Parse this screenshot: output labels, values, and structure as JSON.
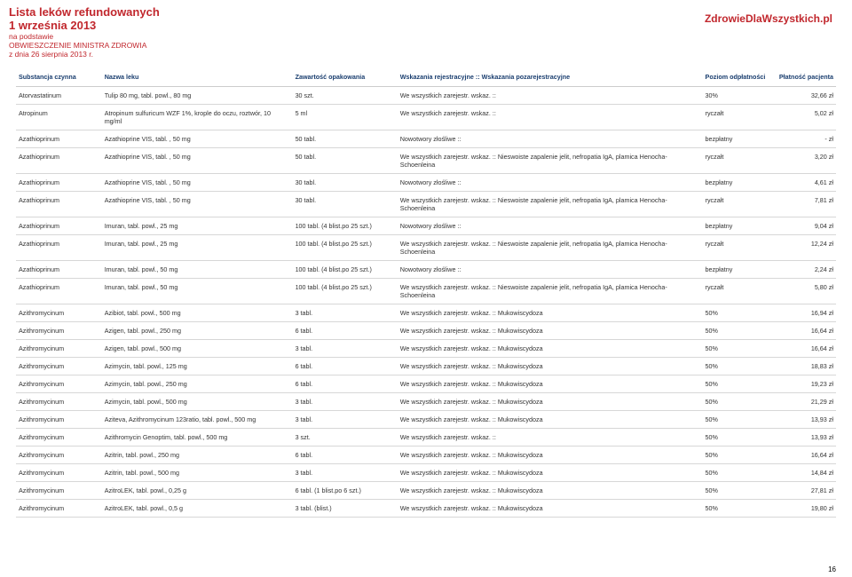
{
  "colors": {
    "accent": "#c1272d",
    "text": "#333333",
    "border": "#d7d7d7",
    "header_blue": "#1a3e6f"
  },
  "header": {
    "title_main": "Lista leków refundowanych",
    "title_date": "1 września 2013",
    "subtitle1": "na podstawie",
    "subtitle2": "OBWIESZCZENIE MINISTRA ZDROWIA",
    "subtitle3": "z dnia 26 sierpnia 2013 r.",
    "brand": "ZdrowieDlaWszystkich.pl"
  },
  "columns": [
    "Substancja czynna",
    "Nazwa leku",
    "Zawartość opakowania",
    "Wskazania rejestracyjne :: Wskazania pozarejestracyjne",
    "Poziom odpłatności",
    "Płatność pacjenta"
  ],
  "rows": [
    {
      "c0": "Atorvastatinum",
      "c1": "Tulip 80 mg, tabl. powl., 80 mg",
      "c2": "30 szt.",
      "c3": "We wszystkich zarejestr. wskaz. ::",
      "c4": "30%",
      "c5": "32,66 zł"
    },
    {
      "c0": "Atropinum",
      "c1": "Atropinum sulfuricum WZF 1%, krople do oczu, roztwór, 10 mg/ml",
      "c2": "5 ml",
      "c3": "We wszystkich zarejestr. wskaz. ::",
      "c4": "ryczałt",
      "c5": "5,02 zł"
    },
    {
      "c0": "Azathioprinum",
      "c1": "Azathioprine VIS, tabl. , 50 mg",
      "c2": "50 tabl.",
      "c3": "Nowotwory złośliwe ::",
      "c4": "bezpłatny",
      "c5": "-  zł"
    },
    {
      "c0": "Azathioprinum",
      "c1": "Azathioprine VIS, tabl. , 50 mg",
      "c2": "50 tabl.",
      "c3": "We wszystkich zarejestr. wskaz. :: Nieswoiste zapalenie jelit, nefropatia IgA, plamica Henocha-Schoenleina",
      "c4": "ryczałt",
      "c5": "3,20 zł"
    },
    {
      "c0": "Azathioprinum",
      "c1": "Azathioprine VIS, tabl. , 50 mg",
      "c2": "30 tabl.",
      "c3": "Nowotwory złośliwe ::",
      "c4": "bezpłatny",
      "c5": "4,61 zł"
    },
    {
      "c0": "Azathioprinum",
      "c1": "Azathioprine VIS, tabl. , 50 mg",
      "c2": "30 tabl.",
      "c3": "We wszystkich zarejestr. wskaz. :: Nieswoiste zapalenie jelit, nefropatia IgA, plamica Henocha-Schoenleina",
      "c4": "ryczałt",
      "c5": "7,81 zł"
    },
    {
      "c0": "Azathioprinum",
      "c1": "Imuran, tabl. powl., 25 mg",
      "c2": "100 tabl. (4 blist.po 25 szt.)",
      "c3": "Nowotwory złośliwe ::",
      "c4": "bezpłatny",
      "c5": "9,04 zł"
    },
    {
      "c0": "Azathioprinum",
      "c1": "Imuran, tabl. powl., 25 mg",
      "c2": "100 tabl. (4 blist.po 25 szt.)",
      "c3": "We wszystkich zarejestr. wskaz. :: Nieswoiste zapalenie jelit, nefropatia IgA, plamica Henocha-Schoenleina",
      "c4": "ryczałt",
      "c5": "12,24 zł"
    },
    {
      "c0": "Azathioprinum",
      "c1": "Imuran, tabl. powl., 50 mg",
      "c2": "100 tabl. (4 blist.po 25 szt.)",
      "c3": "Nowotwory złośliwe ::",
      "c4": "bezpłatny",
      "c5": "2,24 zł"
    },
    {
      "c0": "Azathioprinum",
      "c1": "Imuran, tabl. powl., 50 mg",
      "c2": "100 tabl. (4 blist.po 25 szt.)",
      "c3": "We wszystkich zarejestr. wskaz. :: Nieswoiste zapalenie jelit, nefropatia IgA, plamica Henocha-Schoenleina",
      "c4": "ryczałt",
      "c5": "5,80 zł"
    },
    {
      "c0": "Azithromycinum",
      "c1": "Azibiot, tabl. powl., 500 mg",
      "c2": "3 tabl.",
      "c3": "We wszystkich zarejestr. wskaz. :: Mukowiscydoza",
      "c4": "50%",
      "c5": "16,94 zł"
    },
    {
      "c0": "Azithromycinum",
      "c1": "Azigen, tabl. powl., 250 mg",
      "c2": "6 tabl.",
      "c3": "We wszystkich zarejestr. wskaz. :: Mukowiscydoza",
      "c4": "50%",
      "c5": "16,64 zł"
    },
    {
      "c0": "Azithromycinum",
      "c1": "Azigen, tabl. powl., 500 mg",
      "c2": "3 tabl.",
      "c3": "We wszystkich zarejestr. wskaz. :: Mukowiscydoza",
      "c4": "50%",
      "c5": "16,64 zł"
    },
    {
      "c0": "Azithromycinum",
      "c1": "Azimycin, tabl. powl., 125 mg",
      "c2": "6 tabl.",
      "c3": "We wszystkich zarejestr. wskaz. :: Mukowiscydoza",
      "c4": "50%",
      "c5": "18,83 zł"
    },
    {
      "c0": "Azithromycinum",
      "c1": "Azimycin, tabl. powl., 250 mg",
      "c2": "6 tabl.",
      "c3": "We wszystkich zarejestr. wskaz. :: Mukowiscydoza",
      "c4": "50%",
      "c5": "19,23 zł"
    },
    {
      "c0": "Azithromycinum",
      "c1": "Azimycin, tabl. powl., 500 mg",
      "c2": "3 tabl.",
      "c3": "We wszystkich zarejestr. wskaz. :: Mukowiscydoza",
      "c4": "50%",
      "c5": "21,29 zł"
    },
    {
      "c0": "Azithromycinum",
      "c1": "Aziteva, Azithromycinum 123ratio, tabl. powl., 500 mg",
      "c2": "3 tabl.",
      "c3": "We wszystkich zarejestr. wskaz. :: Mukowiscydoza",
      "c4": "50%",
      "c5": "13,93 zł"
    },
    {
      "c0": "Azithromycinum",
      "c1": "Azithromycin Genoptim, tabl. powl., 500 mg",
      "c2": "3 szt.",
      "c3": "We wszystkich zarejestr. wskaz. ::",
      "c4": "50%",
      "c5": "13,93 zł"
    },
    {
      "c0": "Azithromycinum",
      "c1": "Azitrin, tabl. powl., 250 mg",
      "c2": "6 tabl.",
      "c3": "We wszystkich zarejestr. wskaz. :: Mukowiscydoza",
      "c4": "50%",
      "c5": "16,64 zł"
    },
    {
      "c0": "Azithromycinum",
      "c1": "Azitrin, tabl. powl., 500 mg",
      "c2": "3 tabl.",
      "c3": "We wszystkich zarejestr. wskaz. :: Mukowiscydoza",
      "c4": "50%",
      "c5": "14,84 zł"
    },
    {
      "c0": "Azithromycinum",
      "c1": "AzitroLEK, tabl. powl., 0,25 g",
      "c2": "6 tabl. (1 blist.po 6 szt.)",
      "c3": "We wszystkich zarejestr. wskaz. :: Mukowiscydoza",
      "c4": "50%",
      "c5": "27,81 zł"
    },
    {
      "c0": "Azithromycinum",
      "c1": "AzitroLEK, tabl. powl., 0,5 g",
      "c2": "3 tabl. (blist.)",
      "c3": "We wszystkich zarejestr. wskaz. :: Mukowiscydoza",
      "c4": "50%",
      "c5": "19,80 zł"
    }
  ],
  "page_number": "16"
}
